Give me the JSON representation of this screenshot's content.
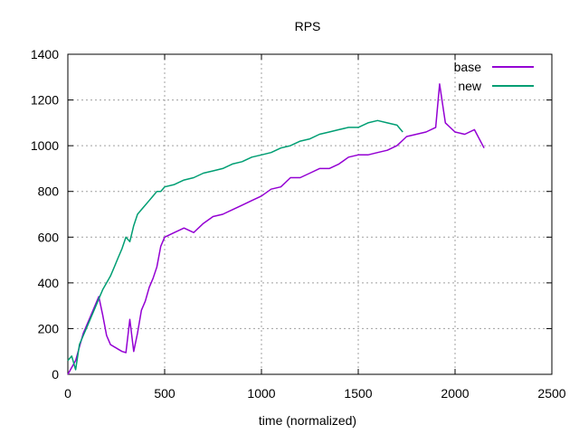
{
  "chart_data": {
    "type": "line",
    "title": "RPS",
    "xlabel": "time (normalized)",
    "ylabel": "",
    "xlim": [
      0,
      2500
    ],
    "ylim": [
      0,
      1400
    ],
    "x_ticks": [
      0,
      500,
      1000,
      1500,
      2000,
      2500
    ],
    "y_ticks": [
      0,
      200,
      400,
      600,
      800,
      1000,
      1200,
      1400
    ],
    "grid": true,
    "legend_position": "top-right",
    "series": [
      {
        "name": "base",
        "color": "#9400d3",
        "x": [
          0,
          20,
          40,
          60,
          80,
          100,
          120,
          140,
          160,
          180,
          200,
          220,
          240,
          260,
          280,
          300,
          320,
          340,
          360,
          380,
          400,
          420,
          440,
          460,
          480,
          500,
          550,
          600,
          650,
          700,
          750,
          800,
          850,
          900,
          950,
          1000,
          1050,
          1100,
          1150,
          1200,
          1250,
          1300,
          1350,
          1400,
          1450,
          1500,
          1550,
          1600,
          1650,
          1700,
          1750,
          1800,
          1850,
          1900,
          1920,
          1950,
          2000,
          2050,
          2100,
          2150
        ],
        "y": [
          0,
          30,
          60,
          120,
          180,
          220,
          260,
          300,
          340,
          260,
          170,
          130,
          120,
          110,
          100,
          95,
          240,
          100,
          180,
          280,
          320,
          380,
          420,
          470,
          560,
          600,
          620,
          640,
          620,
          660,
          690,
          700,
          720,
          740,
          760,
          780,
          810,
          820,
          860,
          860,
          880,
          900,
          900,
          920,
          950,
          960,
          960,
          970,
          980,
          1000,
          1040,
          1050,
          1060,
          1080,
          1270,
          1100,
          1060,
          1050,
          1070,
          990
        ]
      },
      {
        "name": "new",
        "color": "#009e73",
        "x": [
          0,
          20,
          40,
          60,
          80,
          100,
          120,
          140,
          160,
          180,
          200,
          220,
          240,
          260,
          280,
          300,
          320,
          340,
          360,
          380,
          400,
          420,
          440,
          460,
          480,
          500,
          550,
          600,
          650,
          700,
          750,
          800,
          850,
          900,
          950,
          1000,
          1050,
          1100,
          1150,
          1200,
          1250,
          1300,
          1350,
          1400,
          1450,
          1500,
          1550,
          1600,
          1650,
          1700,
          1730
        ],
        "y": [
          60,
          80,
          20,
          130,
          170,
          210,
          250,
          290,
          330,
          370,
          400,
          430,
          470,
          510,
          550,
          600,
          580,
          650,
          700,
          720,
          740,
          760,
          780,
          800,
          800,
          820,
          830,
          850,
          860,
          880,
          890,
          900,
          920,
          930,
          950,
          960,
          970,
          990,
          1000,
          1020,
          1030,
          1050,
          1060,
          1070,
          1080,
          1080,
          1100,
          1110,
          1100,
          1090,
          1060
        ]
      }
    ]
  }
}
